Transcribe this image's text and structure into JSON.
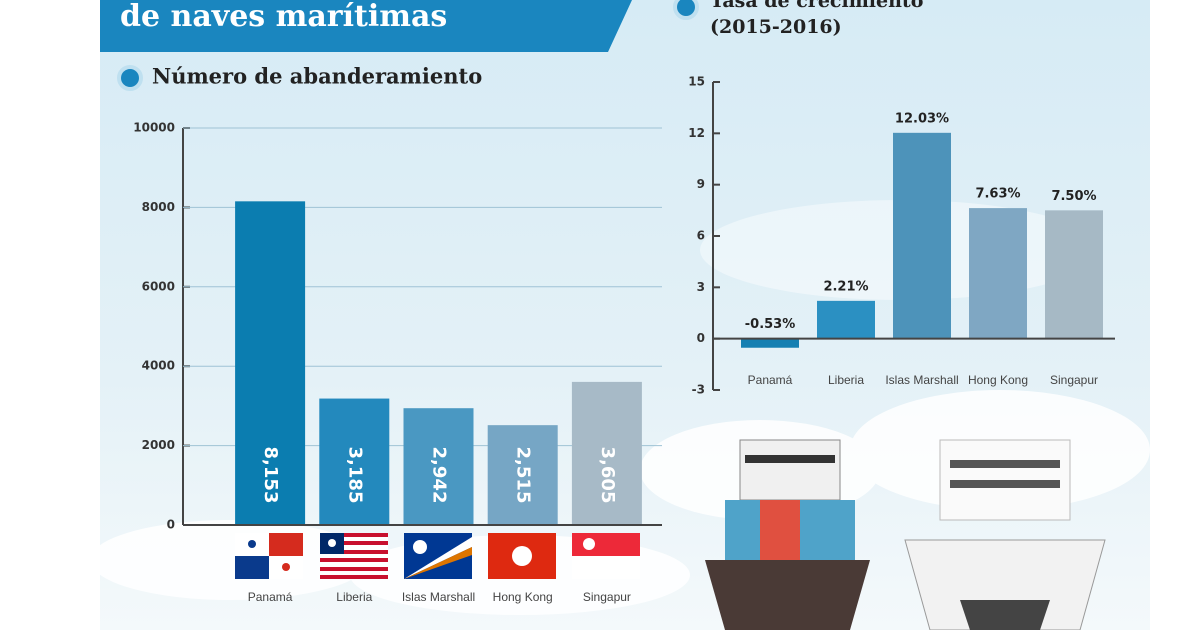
{
  "header": {
    "title": "de naves marítimas"
  },
  "chart_data": [
    {
      "type": "bar",
      "title": "Número de abanderamiento",
      "categories": [
        "Panamá",
        "Liberia",
        "Islas Marshall",
        "Hong Kong",
        "Singapur"
      ],
      "values": [
        8153,
        3185,
        2942,
        2515,
        3605
      ],
      "value_labels": [
        "8,153",
        "3,185",
        "2,942",
        "2,515",
        "3,605"
      ],
      "colors": [
        "#0b7db0",
        "#2389bd",
        "#4a98c2",
        "#76a6c5",
        "#a7bac7"
      ],
      "ylim": [
        0,
        10000
      ],
      "yticks": [
        0,
        2000,
        4000,
        6000,
        8000,
        10000
      ],
      "grid": true
    },
    {
      "type": "bar",
      "title": "Tasa de crecimiento",
      "subtitle": "(2015-2016)",
      "categories": [
        "Panamá",
        "Liberia",
        "Islas Marshall",
        "Hong Kong",
        "Singapur"
      ],
      "values": [
        -0.53,
        2.21,
        12.03,
        7.63,
        7.5
      ],
      "value_labels": [
        "-0.53%",
        "2.21%",
        "12.03%",
        "7.63%",
        "7.50%"
      ],
      "colors": [
        "#157fb2",
        "#2b90c2",
        "#4d93ba",
        "#7fa7c3",
        "#a6b9c5"
      ],
      "ylim": [
        -3,
        15
      ],
      "yticks": [
        -3,
        0,
        3,
        6,
        9,
        12,
        15
      ],
      "grid": false
    }
  ]
}
